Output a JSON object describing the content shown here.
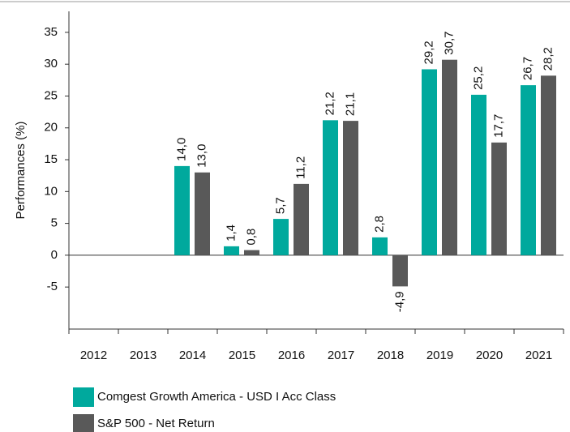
{
  "chart_data": {
    "type": "bar",
    "ylabel": "Performances (%)",
    "categories": [
      "2012",
      "2013",
      "2014",
      "2015",
      "2016",
      "2017",
      "2018",
      "2019",
      "2020",
      "2021"
    ],
    "series": [
      {
        "name": "Comgest Growth America - USD I Acc Class",
        "color": "#00a99d",
        "values": [
          null,
          null,
          14.0,
          1.4,
          5.7,
          21.2,
          2.8,
          29.2,
          25.2,
          26.7
        ],
        "value_labels": [
          null,
          null,
          "14,0",
          "1,4",
          "5,7",
          "21,2",
          "2,8",
          "29,2",
          "25,2",
          "26,7"
        ]
      },
      {
        "name": "S&P 500 - Net Return",
        "color": "#595959",
        "values": [
          null,
          null,
          13.0,
          0.8,
          11.2,
          21.1,
          -4.9,
          30.7,
          17.7,
          28.2
        ],
        "value_labels": [
          null,
          null,
          "13,0",
          "0,8",
          "11,2",
          "21,1",
          "-4,9",
          "30,7",
          "17,7",
          "28,2"
        ]
      }
    ],
    "ylim": [
      -11.6,
      38.3
    ],
    "yticks": [
      -5,
      0,
      5,
      10,
      15,
      20,
      25,
      30,
      35
    ]
  }
}
